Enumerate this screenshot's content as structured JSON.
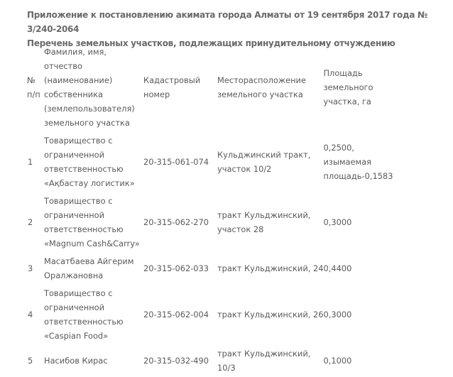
{
  "title": {
    "line1": "Приложение к постановлению акимата города Алматы от 19 сентября 2017 года № 3/240-2064",
    "line2": "Перечень земельных участков, подлежащих принудительному отчуждению"
  },
  "table": {
    "headers": [
      [
        "№",
        "п/п"
      ],
      [
        "Фамилия, имя,",
        "отчество",
        "(наименование)",
        "собственника",
        "(землепользователя)",
        "земельного участка"
      ],
      [
        "Кадастровый",
        "номер"
      ],
      [
        "Месторасположение",
        "земельного участка"
      ],
      [
        "Площадь",
        "земельного",
        "участка, га"
      ]
    ],
    "rows": [
      [
        [
          "1"
        ],
        [
          "Товарищество с",
          "ограниченной",
          "ответственностью",
          "«Ақбастау логистик»"
        ],
        [
          "20-315-061-074"
        ],
        [
          "Кульджинский тракт,",
          "участок 10/2"
        ],
        [
          "0,2500,",
          "изымаемая",
          "площадь-0,1583"
        ]
      ],
      [
        [
          "2"
        ],
        [
          "Товарищество с",
          "ограниченной",
          "ответственностью",
          "«Magnum Cash&Carry»"
        ],
        [
          "20-315-062-270"
        ],
        [
          "тракт Кульджинский,",
          "участок 28"
        ],
        [
          "0,3000"
        ]
      ],
      [
        [
          "3"
        ],
        [
          "Масатбаева Айгерим",
          "Оралжановна"
        ],
        [
          "20-315-062-033"
        ],
        [
          "тракт Кульджинский, 24"
        ],
        [
          "0,4400"
        ]
      ],
      [
        [
          "4"
        ],
        [
          "Товарищество с",
          "ограниченной",
          "ответственностью",
          "«Caspian Food»"
        ],
        [
          "20-315-062-004"
        ],
        [
          "тракт Кульджинский, 26"
        ],
        [
          "0,3000"
        ]
      ],
      [
        [
          "5"
        ],
        [
          "Насибов Кирас"
        ],
        [
          "20-315-032-490"
        ],
        [
          "тракт Кульджинский,",
          "10/3"
        ],
        [
          "0,1000"
        ]
      ]
    ]
  }
}
